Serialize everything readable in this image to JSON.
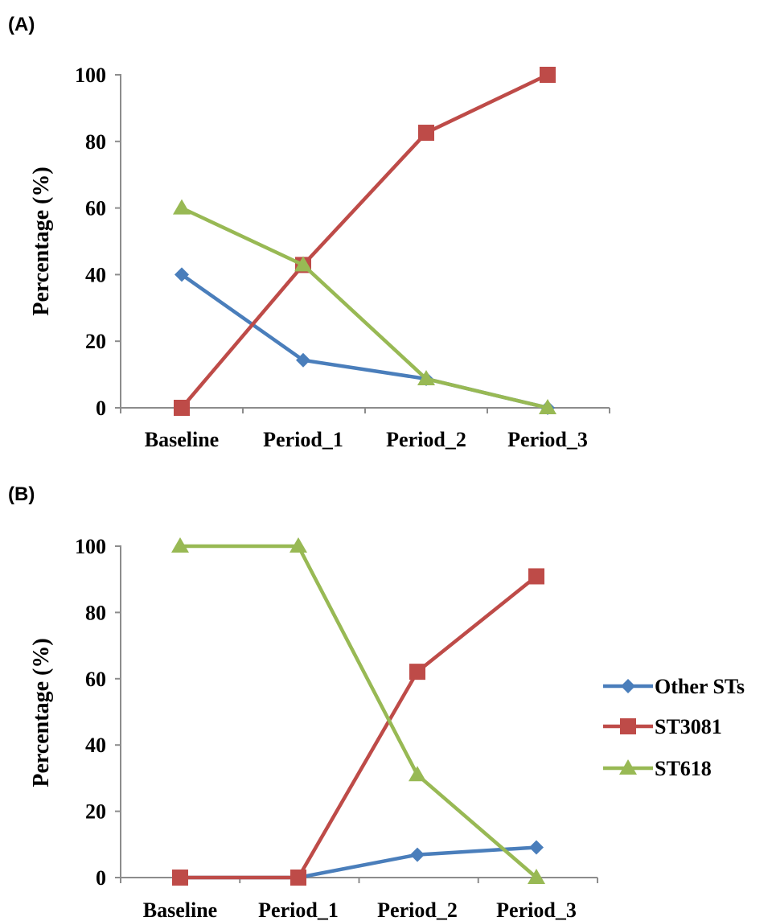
{
  "panels": [
    {
      "label": "(A)",
      "ylabel": "Percentage (%)"
    },
    {
      "label": "(B)",
      "ylabel": "Percentage (%)"
    }
  ],
  "legend": {
    "items": [
      {
        "label": "Other STs",
        "color": "#4a7ebb",
        "marker": "diamond"
      },
      {
        "label": "ST3081",
        "color": "#be4b48",
        "marker": "square"
      },
      {
        "label": "ST618",
        "color": "#98b954",
        "marker": "triangle"
      }
    ]
  },
  "chart_data": [
    {
      "type": "line",
      "title": "(A)",
      "ylabel": "Percentage (%)",
      "xlabel": "",
      "ylim": [
        0,
        100
      ],
      "yticks": [
        0,
        20,
        40,
        60,
        80,
        100
      ],
      "categories": [
        "Baseline",
        "Period_1",
        "Period_2",
        "Period_3"
      ],
      "series": [
        {
          "name": "Other STs",
          "color": "#4a7ebb",
          "marker": "diamond",
          "values": [
            40,
            14.3,
            8.7,
            0
          ]
        },
        {
          "name": "ST3081",
          "color": "#be4b48",
          "marker": "square",
          "values": [
            0,
            42.9,
            82.6,
            100
          ]
        },
        {
          "name": "ST618",
          "color": "#98b954",
          "marker": "triangle",
          "values": [
            60,
            42.9,
            8.7,
            0
          ]
        }
      ],
      "legend": "right",
      "grid": false
    },
    {
      "type": "line",
      "title": "(B)",
      "ylabel": "Percentage (%)",
      "xlabel": "",
      "ylim": [
        0,
        100
      ],
      "yticks": [
        0,
        20,
        40,
        60,
        80,
        100
      ],
      "categories": [
        "Baseline",
        "Period_1",
        "Period_2",
        "Period_3"
      ],
      "series": [
        {
          "name": "Other STs",
          "color": "#4a7ebb",
          "marker": "diamond",
          "values": [
            0,
            0,
            6.9,
            9.1
          ]
        },
        {
          "name": "ST3081",
          "color": "#be4b48",
          "marker": "square",
          "values": [
            0,
            0,
            62.1,
            90.9
          ]
        },
        {
          "name": "ST618",
          "color": "#98b954",
          "marker": "triangle",
          "values": [
            100,
            100,
            31,
            0
          ]
        }
      ],
      "legend": "right",
      "grid": false
    }
  ]
}
